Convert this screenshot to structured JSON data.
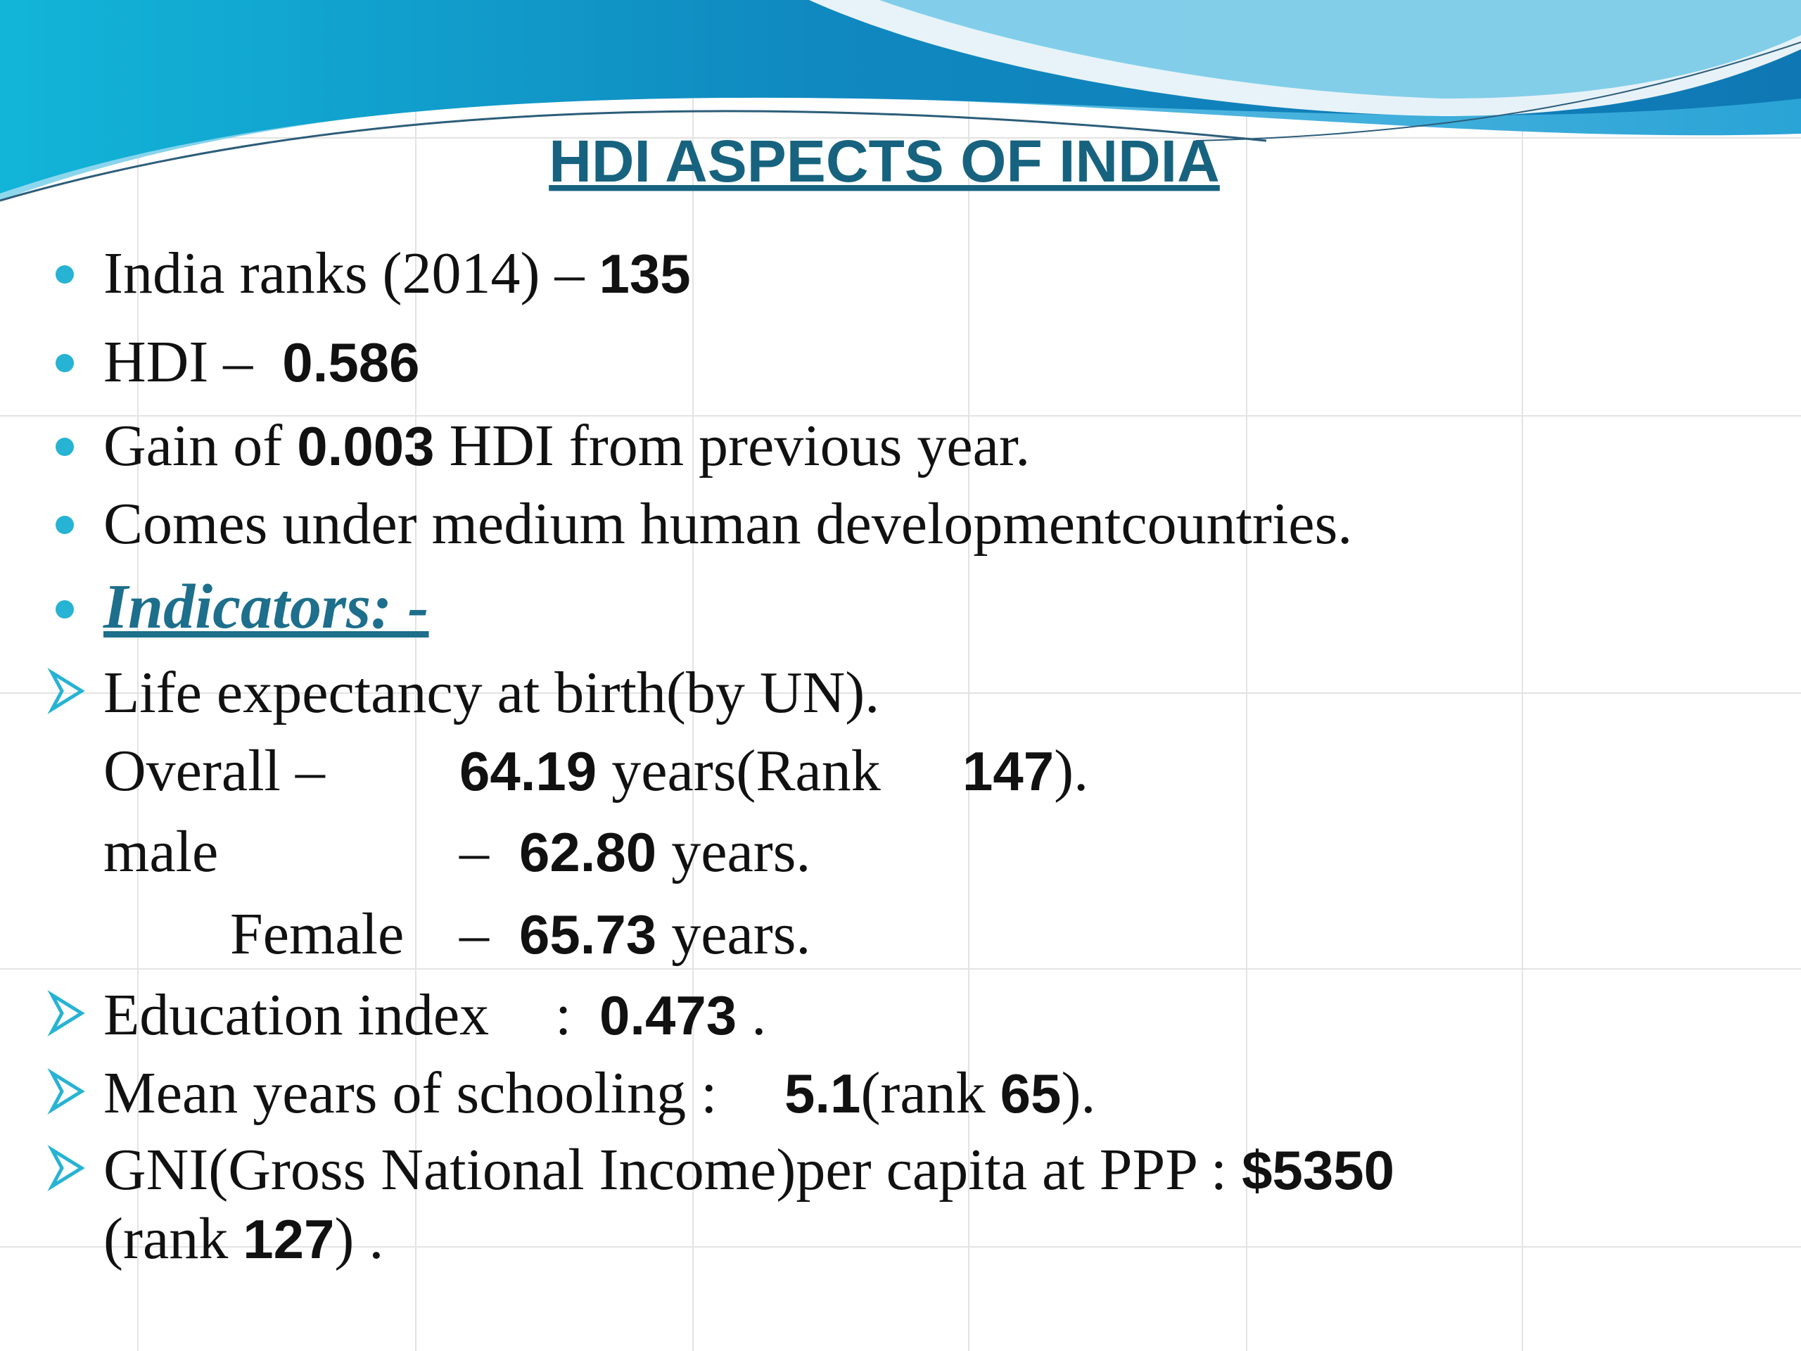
{
  "title": "HDI ASPECTS OF INDIA",
  "lines": [
    [
      "India ranks (2014) – ",
      "135"
    ],
    [
      "HDI –  ",
      "0.586"
    ],
    [
      "Gain of ",
      "0.003",
      " HDI from previous year."
    ],
    [
      "Comes under medium human developmentcountries."
    ],
    [
      "Indicators: -"
    ],
    [
      "Life expectancy at birth(by UN)."
    ],
    [
      "Overall –",
      "64.19",
      " years(Rank",
      "147",
      ")."
    ],
    [
      "male",
      "–",
      "62.80",
      " years."
    ],
    [
      "Female",
      "–",
      "65.73",
      " years."
    ],
    [
      "Education index",
      ":",
      "0.473",
      " ."
    ],
    [
      "Mean years of schooling :",
      "5.1",
      "(rank ",
      "65",
      ")."
    ],
    [
      "GNI(Gross National Income)per capita at PPP : ",
      "$5350"
    ],
    [
      "(rank ",
      "127",
      ") ."
    ]
  ]
}
